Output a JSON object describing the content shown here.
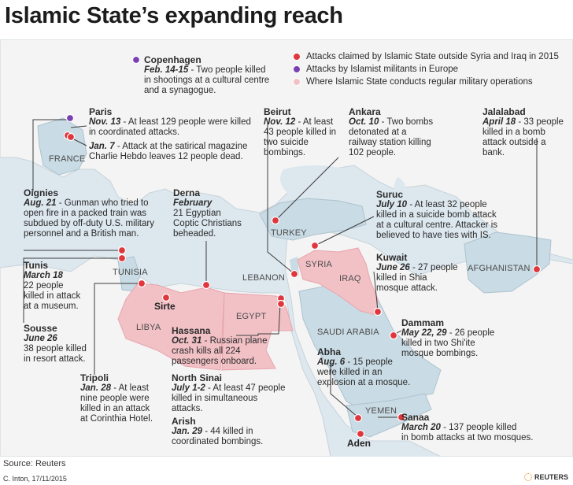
{
  "title": "Islamic State’s expanding reach",
  "legend": [
    {
      "label": "Attacks claimed by Islamic State outside Syria and Iraq in 2015",
      "color": "#e0363d"
    },
    {
      "label": "Attacks by Islamist militants in Europe",
      "color": "#7b3fb5"
    },
    {
      "label": "Where Islamic State conducts regular military operations",
      "color": "#f1c1c6"
    }
  ],
  "countries": {
    "france": "FRANCE",
    "turkey": "TURKEY",
    "syria": "SYRIA",
    "iraq": "IRAQ",
    "lebanon": "LEBANON",
    "tunisia": "TUNISIA",
    "libya": "LIBYA",
    "egypt": "EGYPT",
    "saudi": "SAUDI ARABIA",
    "yemen": "YEMEN",
    "afghanistan": "AFGHANISTAN"
  },
  "cities": {
    "sirte": "Sirte",
    "aden": "Aden"
  },
  "attacks": {
    "copenhagen": {
      "place": "Copenhagen",
      "date": "Feb. 14-15",
      "text": [
        "- Two people killed",
        "in shootings at a cultural centre",
        "and a synagogue."
      ]
    },
    "paris": {
      "place": "Paris",
      "date": "Nov. 13",
      "text": [
        "- At least 129 people were killed",
        "in coordinated attacks."
      ],
      "date2": "Jan. 7",
      "text2": [
        "- Attack at the satirical magazine",
        "Charlie Hebdo leaves 12 people dead."
      ]
    },
    "beirut": {
      "place": "Beirut",
      "date": "Nov. 12",
      "text": [
        "- At least",
        "43 people killed in",
        "two suicide",
        "bombings."
      ]
    },
    "ankara": {
      "place": "Ankara",
      "date": "Oct. 10",
      "text": [
        "- Two bombs",
        "detonated at a",
        "railway station killing",
        "102 people."
      ]
    },
    "jalalabad": {
      "place": "Jalalabad",
      "date": "April 18",
      "text": [
        "- 33 people",
        "killed in a bomb",
        "attack outside a",
        "bank."
      ]
    },
    "oignies": {
      "place": "Oignies",
      "date": "Aug. 21",
      "text": [
        "- Gunman who tried to",
        "open fire in a packed train was",
        "subdued by off-duty U.S. military",
        "personnel and a British man."
      ]
    },
    "derna": {
      "place": "Derna",
      "date": "February",
      "text": [
        "21 Egyptian",
        "Coptic Christians",
        "beheaded."
      ]
    },
    "suruc": {
      "place": "Suruc",
      "date": "July 10",
      "text": [
        "- At least 32 people",
        "killed in a suicide bomb attack",
        "at a cultural centre. Attacker is",
        "believed to have ties with IS."
      ]
    },
    "tunis": {
      "place": "Tunis",
      "date": "March 18",
      "text": [
        "22 people",
        "killed in attack",
        "at a museum."
      ]
    },
    "kuwait": {
      "place": "Kuwait",
      "date": "June 26",
      "text": [
        "- 27 people",
        "killed in Shia",
        "mosque attack."
      ]
    },
    "sousse": {
      "place": "Sousse",
      "date": "June 26",
      "text": [
        "38 people killed",
        "in resort attack."
      ]
    },
    "hassana": {
      "place": "Hassana",
      "date": "Oct. 31",
      "text": [
        "- Russian plane",
        "crash kills all 224",
        "passengers onboard."
      ]
    },
    "dammam": {
      "place": "Dammam",
      "date": "May 22, 29",
      "text": [
        "- 26 people",
        "killed in two Shi'ite",
        "mosque bombings."
      ]
    },
    "abha": {
      "place": "Abha",
      "date": "Aug. 6",
      "text": [
        "- 15 people",
        "were killed in an",
        "explosion at a mosque."
      ]
    },
    "tripoli": {
      "place": "Tripoli",
      "date": "Jan. 28",
      "text": [
        "- At least",
        "nine people were",
        "killed in an attack",
        "at Corinthia Hotel."
      ]
    },
    "north_sinai": {
      "place": "North Sinai",
      "date": "July 1-2",
      "text": [
        "- At least 47 people",
        "killed in simultaneous",
        "attacks."
      ]
    },
    "arish": {
      "place": "Arish",
      "date": "Jan. 29",
      "text": [
        "- 44 killed in",
        "coordinated bombings."
      ]
    },
    "sanaa": {
      "place": "Sanaa",
      "date": "March 20",
      "text": [
        "- 137 people killed",
        "in bomb attacks at two mosques."
      ]
    }
  },
  "source": "Source: Reuters",
  "credit": "C. Inton, 17/11/2015",
  "brand": "REUTERS"
}
